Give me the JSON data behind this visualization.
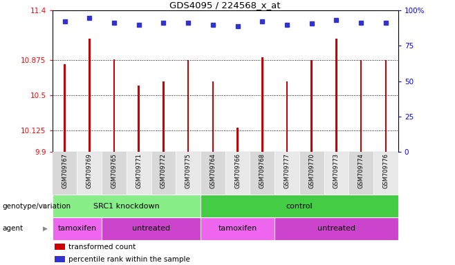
{
  "title": "GDS4095 / 224568_x_at",
  "samples": [
    "GSM709767",
    "GSM709769",
    "GSM709765",
    "GSM709771",
    "GSM709772",
    "GSM709775",
    "GSM709764",
    "GSM709766",
    "GSM709768",
    "GSM709777",
    "GSM709770",
    "GSM709773",
    "GSM709774",
    "GSM709776"
  ],
  "bar_values": [
    10.83,
    11.1,
    10.88,
    10.6,
    10.65,
    10.875,
    10.65,
    10.155,
    10.9,
    10.65,
    10.875,
    11.1,
    10.875,
    10.875
  ],
  "dot_y_values": [
    11.28,
    11.32,
    11.27,
    11.25,
    11.27,
    11.27,
    11.25,
    11.23,
    11.28,
    11.25,
    11.26,
    11.3,
    11.27,
    11.27
  ],
  "ylim_left": [
    9.9,
    11.4
  ],
  "ylim_right": [
    0,
    100
  ],
  "yticks_left": [
    9.9,
    10.125,
    10.5,
    10.875,
    11.4
  ],
  "ytick_labels_left": [
    "9.9",
    "10.125",
    "10.5",
    "10.875",
    "11.4"
  ],
  "yticks_right": [
    0,
    25,
    50,
    75,
    100
  ],
  "ytick_labels_right": [
    "0",
    "25",
    "50",
    "75",
    "100%"
  ],
  "hlines": [
    10.125,
    10.5,
    10.875
  ],
  "bar_color": "#cc0000",
  "dot_color": "#3333cc",
  "genotype_groups": [
    {
      "label": "SRC1 knockdown",
      "start": 0,
      "end": 6,
      "color": "#88ee88"
    },
    {
      "label": "control",
      "start": 6,
      "end": 14,
      "color": "#44cc44"
    }
  ],
  "agent_groups": [
    {
      "label": "tamoxifen",
      "start": 0,
      "end": 2,
      "color": "#ee66ee"
    },
    {
      "label": "untreated",
      "start": 2,
      "end": 6,
      "color": "#cc44cc"
    },
    {
      "label": "tamoxifen",
      "start": 6,
      "end": 9,
      "color": "#ee66ee"
    },
    {
      "label": "untreated",
      "start": 9,
      "end": 14,
      "color": "#cc44cc"
    }
  ],
  "legend_items": [
    {
      "label": "transformed count",
      "color": "#cc0000"
    },
    {
      "label": "percentile rank within the sample",
      "color": "#3333cc"
    }
  ],
  "row_labels": [
    "genotype/variation",
    "agent"
  ],
  "bar_width": 0.07,
  "background_color": "#ffffff"
}
